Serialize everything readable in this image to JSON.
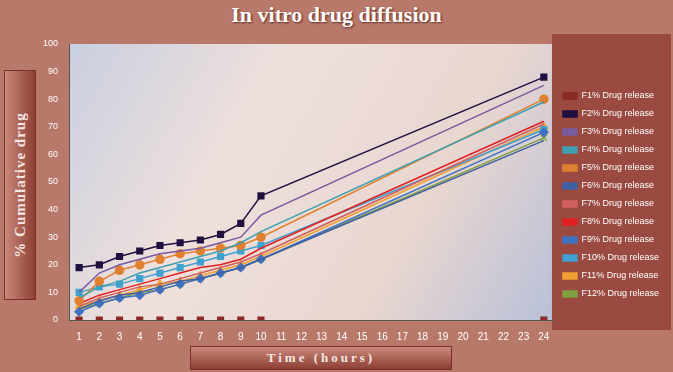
{
  "chart_data": {
    "type": "line",
    "title": "In vitro drug diffusion",
    "x_label": "Time (hours)",
    "y_label": "% Cumulative drug",
    "x": [
      1,
      2,
      3,
      4,
      5,
      6,
      7,
      8,
      9,
      10,
      24
    ],
    "xlim": [
      0.5,
      24.5
    ],
    "xticks": [
      1,
      2,
      3,
      4,
      5,
      6,
      7,
      8,
      9,
      10,
      11,
      12,
      13,
      14,
      15,
      16,
      17,
      18,
      19,
      20,
      21,
      22,
      23,
      24
    ],
    "ylim": [
      0,
      100
    ],
    "yticks": [
      0,
      10,
      20,
      30,
      40,
      50,
      60,
      70,
      80,
      90,
      100
    ],
    "grid": false,
    "legend": "right",
    "series": [
      {
        "name": "F1% Drug release",
        "color": "#8b2a25",
        "marker": "square",
        "line_style": "none",
        "values": [
          0,
          0,
          0,
          0,
          0,
          0,
          0,
          0,
          0,
          0,
          0
        ]
      },
      {
        "name": "F2% Drug release",
        "color": "#1f1040",
        "marker": "square",
        "line_style": "solid",
        "values": [
          19,
          20,
          23,
          25,
          27,
          28,
          29,
          31,
          35,
          45,
          88
        ]
      },
      {
        "name": "F3% Drug release",
        "color": "#7a5aa0",
        "marker": "none",
        "line_style": "solid",
        "values": [
          10,
          17,
          20,
          22,
          24,
          25,
          26,
          28,
          30,
          38,
          85
        ]
      },
      {
        "name": "F4% Drug release",
        "color": "#3fa0b0",
        "marker": "none",
        "line_style": "solid",
        "values": [
          8,
          12,
          14,
          17,
          19,
          21,
          23,
          25,
          28,
          32,
          79
        ]
      },
      {
        "name": "F5% Drug release",
        "color": "#e08030",
        "marker": "circle",
        "line_style": "solid",
        "values": [
          7,
          14,
          18,
          20,
          22,
          24,
          25,
          26,
          27,
          30,
          80
        ]
      },
      {
        "name": "F6% Drug release",
        "color": "#4060a0",
        "marker": "none",
        "line_style": "solid",
        "values": [
          4,
          7,
          9,
          10,
          12,
          14,
          15,
          17,
          19,
          22,
          65
        ]
      },
      {
        "name": "F7% Drug release",
        "color": "#d06060",
        "marker": "none",
        "line_style": "solid",
        "values": [
          5,
          8,
          10,
          12,
          13,
          15,
          17,
          19,
          21,
          24,
          71
        ]
      },
      {
        "name": "F8% Drug release",
        "color": "#e02020",
        "marker": "none",
        "line_style": "solid",
        "values": [
          6,
          9,
          11,
          13,
          15,
          17,
          19,
          20,
          22,
          26,
          72
        ]
      },
      {
        "name": "F9% Drug release",
        "color": "#4070c0",
        "marker": "diamond",
        "line_style": "solid",
        "values": [
          3,
          6,
          8,
          9,
          11,
          13,
          15,
          17,
          19,
          22,
          68
        ]
      },
      {
        "name": "F10% Drug release",
        "color": "#40a0d0",
        "marker": "square",
        "line_style": "solid",
        "values": [
          10,
          12,
          13,
          15,
          17,
          19,
          21,
          23,
          25,
          27,
          69
        ]
      },
      {
        "name": "F11% Drug release",
        "color": "#f0a030",
        "marker": "triangle",
        "line_style": "solid",
        "values": [
          5,
          7,
          9,
          11,
          13,
          14,
          16,
          18,
          20,
          23,
          70
        ]
      },
      {
        "name": "F12% Drug release",
        "color": "#80a040",
        "marker": "cross",
        "line_style": "solid",
        "values": [
          4,
          6,
          8,
          10,
          11,
          13,
          15,
          17,
          19,
          22,
          66
        ]
      }
    ]
  }
}
